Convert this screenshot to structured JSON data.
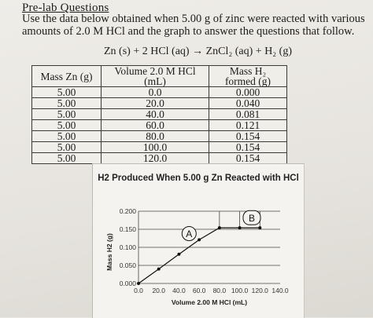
{
  "document": {
    "heading": "Pre-lab Questions",
    "instructions": "Use the data below obtained when 5.00 g of zinc were reacted with various amounts of 2.0 M HCl and the graph to answer the questions that follow.",
    "equation": "Zn (s) + 2 HCl (aq) → ZnCl₂ (aq) + H₂ (g)"
  },
  "table": {
    "headers": [
      "Mass Zn (g)",
      "Volume 2.0 M HCl (mL)",
      "Mass H₂ formed (g)"
    ],
    "rows": [
      [
        "5.00",
        "0.0",
        "0.000"
      ],
      [
        "5.00",
        "20.0",
        "0.040"
      ],
      [
        "5.00",
        "40.0",
        "0.081"
      ],
      [
        "5.00",
        "60.0",
        "0.121"
      ],
      [
        "5.00",
        "80.0",
        "0.154"
      ],
      [
        "5.00",
        "100.0",
        "0.154"
      ],
      [
        "5.00",
        "120.0",
        "0.154"
      ]
    ]
  },
  "chart_data": {
    "type": "line",
    "title": "H2 Produced When 5.00 g Zn Reacted with HCl",
    "xlabel": "Volume 2.00 M HCl (mL)",
    "ylabel": "Mass H2 (g)",
    "x_ticks": [
      "0.0",
      "20.0",
      "40.0",
      "60.0",
      "80.0",
      "100.0",
      "120.0",
      "140.0"
    ],
    "y_ticks": [
      "0.000",
      "0.050",
      "0.100",
      "0.150",
      "0.200"
    ],
    "xlim": [
      0,
      140
    ],
    "ylim": [
      0,
      0.2
    ],
    "grid": true,
    "series": [
      {
        "x": [
          0,
          20,
          40,
          60,
          80,
          100,
          120
        ],
        "y": [
          0,
          0.04,
          0.081,
          0.121,
          0.154,
          0.154,
          0.154
        ]
      }
    ],
    "annotations": [
      {
        "text": "A",
        "x": 50,
        "y": 0.138
      },
      {
        "text": "B",
        "x": 112,
        "y": 0.182
      }
    ]
  }
}
